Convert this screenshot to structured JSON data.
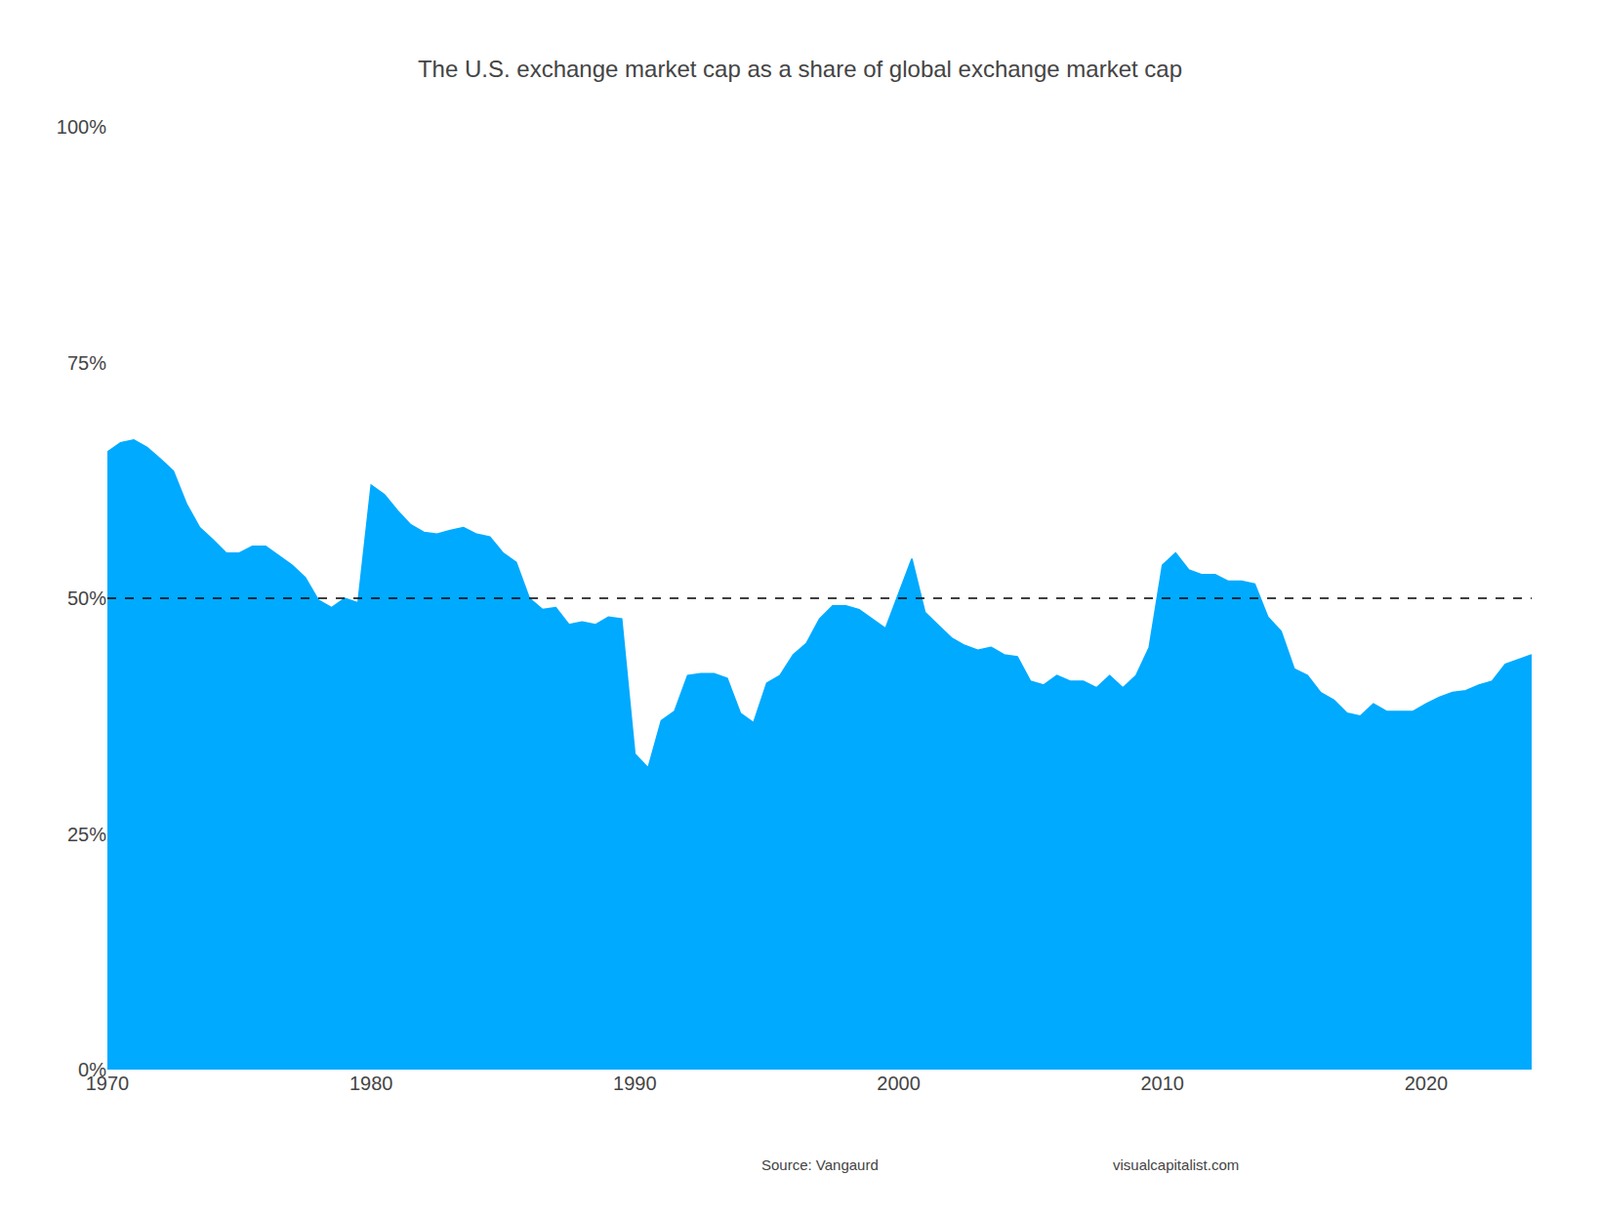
{
  "chart_data": {
    "type": "area",
    "title": "The U.S. exchange market cap as a share of global exchange market cap",
    "annotations": [
      "Source: Vangaurd",
      "visualcapitalist.com"
    ],
    "color": "#00aaff",
    "grid": false,
    "xlim": [
      1970,
      2024
    ],
    "xticks": [
      1970,
      1980,
      1990,
      2000,
      2010,
      2020
    ],
    "ylim": [
      0,
      1.0
    ],
    "yticks": [
      {
        "value": 0,
        "label": "0%"
      },
      {
        "value": 0.25,
        "label": "25%"
      },
      {
        "value": 0.5,
        "label": "50%"
      },
      {
        "value": 0.75,
        "label": "75%"
      },
      {
        "value": 1.0,
        "label": "100%"
      }
    ],
    "hline": {
      "value": 0.5,
      "line_style": "dash"
    },
    "x": [
      1970.0,
      1970.5,
      1971.0,
      1971.5,
      1972.0,
      1972.5,
      1973.0,
      1973.5,
      1974.0,
      1974.5,
      1975.0,
      1975.5,
      1976.0,
      1976.5,
      1977.0,
      1977.5,
      1978.0,
      1978.5,
      1979.0,
      1979.5,
      1980.0,
      1980.5,
      1981.0,
      1981.5,
      1982.0,
      1982.5,
      1983.0,
      1983.5,
      1984.0,
      1984.5,
      1985.0,
      1985.5,
      1986.0,
      1986.5,
      1987.0,
      1987.5,
      1988.0,
      1988.5,
      1989.0,
      1989.5,
      1990.0,
      1990.5,
      1991.0,
      1991.5,
      1992.0,
      1992.5,
      1993.0,
      1993.5,
      1994.0,
      1994.5,
      1995.0,
      1995.5,
      1996.0,
      1996.5,
      1997.0,
      1997.5,
      1998.0,
      1998.5,
      1999.0,
      1999.5,
      2000.0,
      2000.5,
      2001.0,
      2001.5,
      2002.0,
      2002.5,
      2003.0,
      2003.5,
      2004.0,
      2004.5,
      2005.0,
      2005.5,
      2006.0,
      2006.5,
      2007.0,
      2007.5,
      2008.0,
      2008.5,
      2009.0,
      2009.5,
      2010.0,
      2010.5,
      2011.0,
      2011.5,
      2012.0,
      2012.5,
      2013.0,
      2013.5,
      2014.0,
      2014.5,
      2015.0,
      2015.5,
      2016.0,
      2016.5,
      2017.0,
      2017.5,
      2018.0,
      2018.5,
      2019.0,
      2019.5,
      2020.0,
      2020.5,
      2021.0,
      2021.5,
      2022.0,
      2022.5,
      2023.0,
      2023.5,
      2024.0
    ],
    "values": [
      0.655,
      0.665,
      0.668,
      0.66,
      0.648,
      0.635,
      0.6,
      0.575,
      0.562,
      0.548,
      0.548,
      0.555,
      0.555,
      0.545,
      0.535,
      0.522,
      0.498,
      0.49,
      0.5,
      0.495,
      0.62,
      0.61,
      0.593,
      0.578,
      0.57,
      0.568,
      0.572,
      0.575,
      0.568,
      0.565,
      0.548,
      0.538,
      0.5,
      0.488,
      0.49,
      0.472,
      0.475,
      0.472,
      0.48,
      0.478,
      0.335,
      0.32,
      0.37,
      0.38,
      0.418,
      0.42,
      0.42,
      0.415,
      0.378,
      0.368,
      0.41,
      0.418,
      0.44,
      0.452,
      0.478,
      0.492,
      0.492,
      0.488,
      0.478,
      0.468,
      0.505,
      0.542,
      0.485,
      0.472,
      0.458,
      0.45,
      0.445,
      0.448,
      0.44,
      0.438,
      0.412,
      0.408,
      0.418,
      0.412,
      0.412,
      0.405,
      0.418,
      0.405,
      0.418,
      0.448,
      0.535,
      0.548,
      0.53,
      0.525,
      0.525,
      0.518,
      0.518,
      0.515,
      0.48,
      0.465,
      0.425,
      0.418,
      0.4,
      0.392,
      0.378,
      0.375,
      0.388,
      0.38,
      0.38,
      0.38,
      0.388,
      0.395,
      0.4,
      0.402,
      0.408,
      0.412,
      0.43,
      0.435,
      0.44
    ]
  }
}
